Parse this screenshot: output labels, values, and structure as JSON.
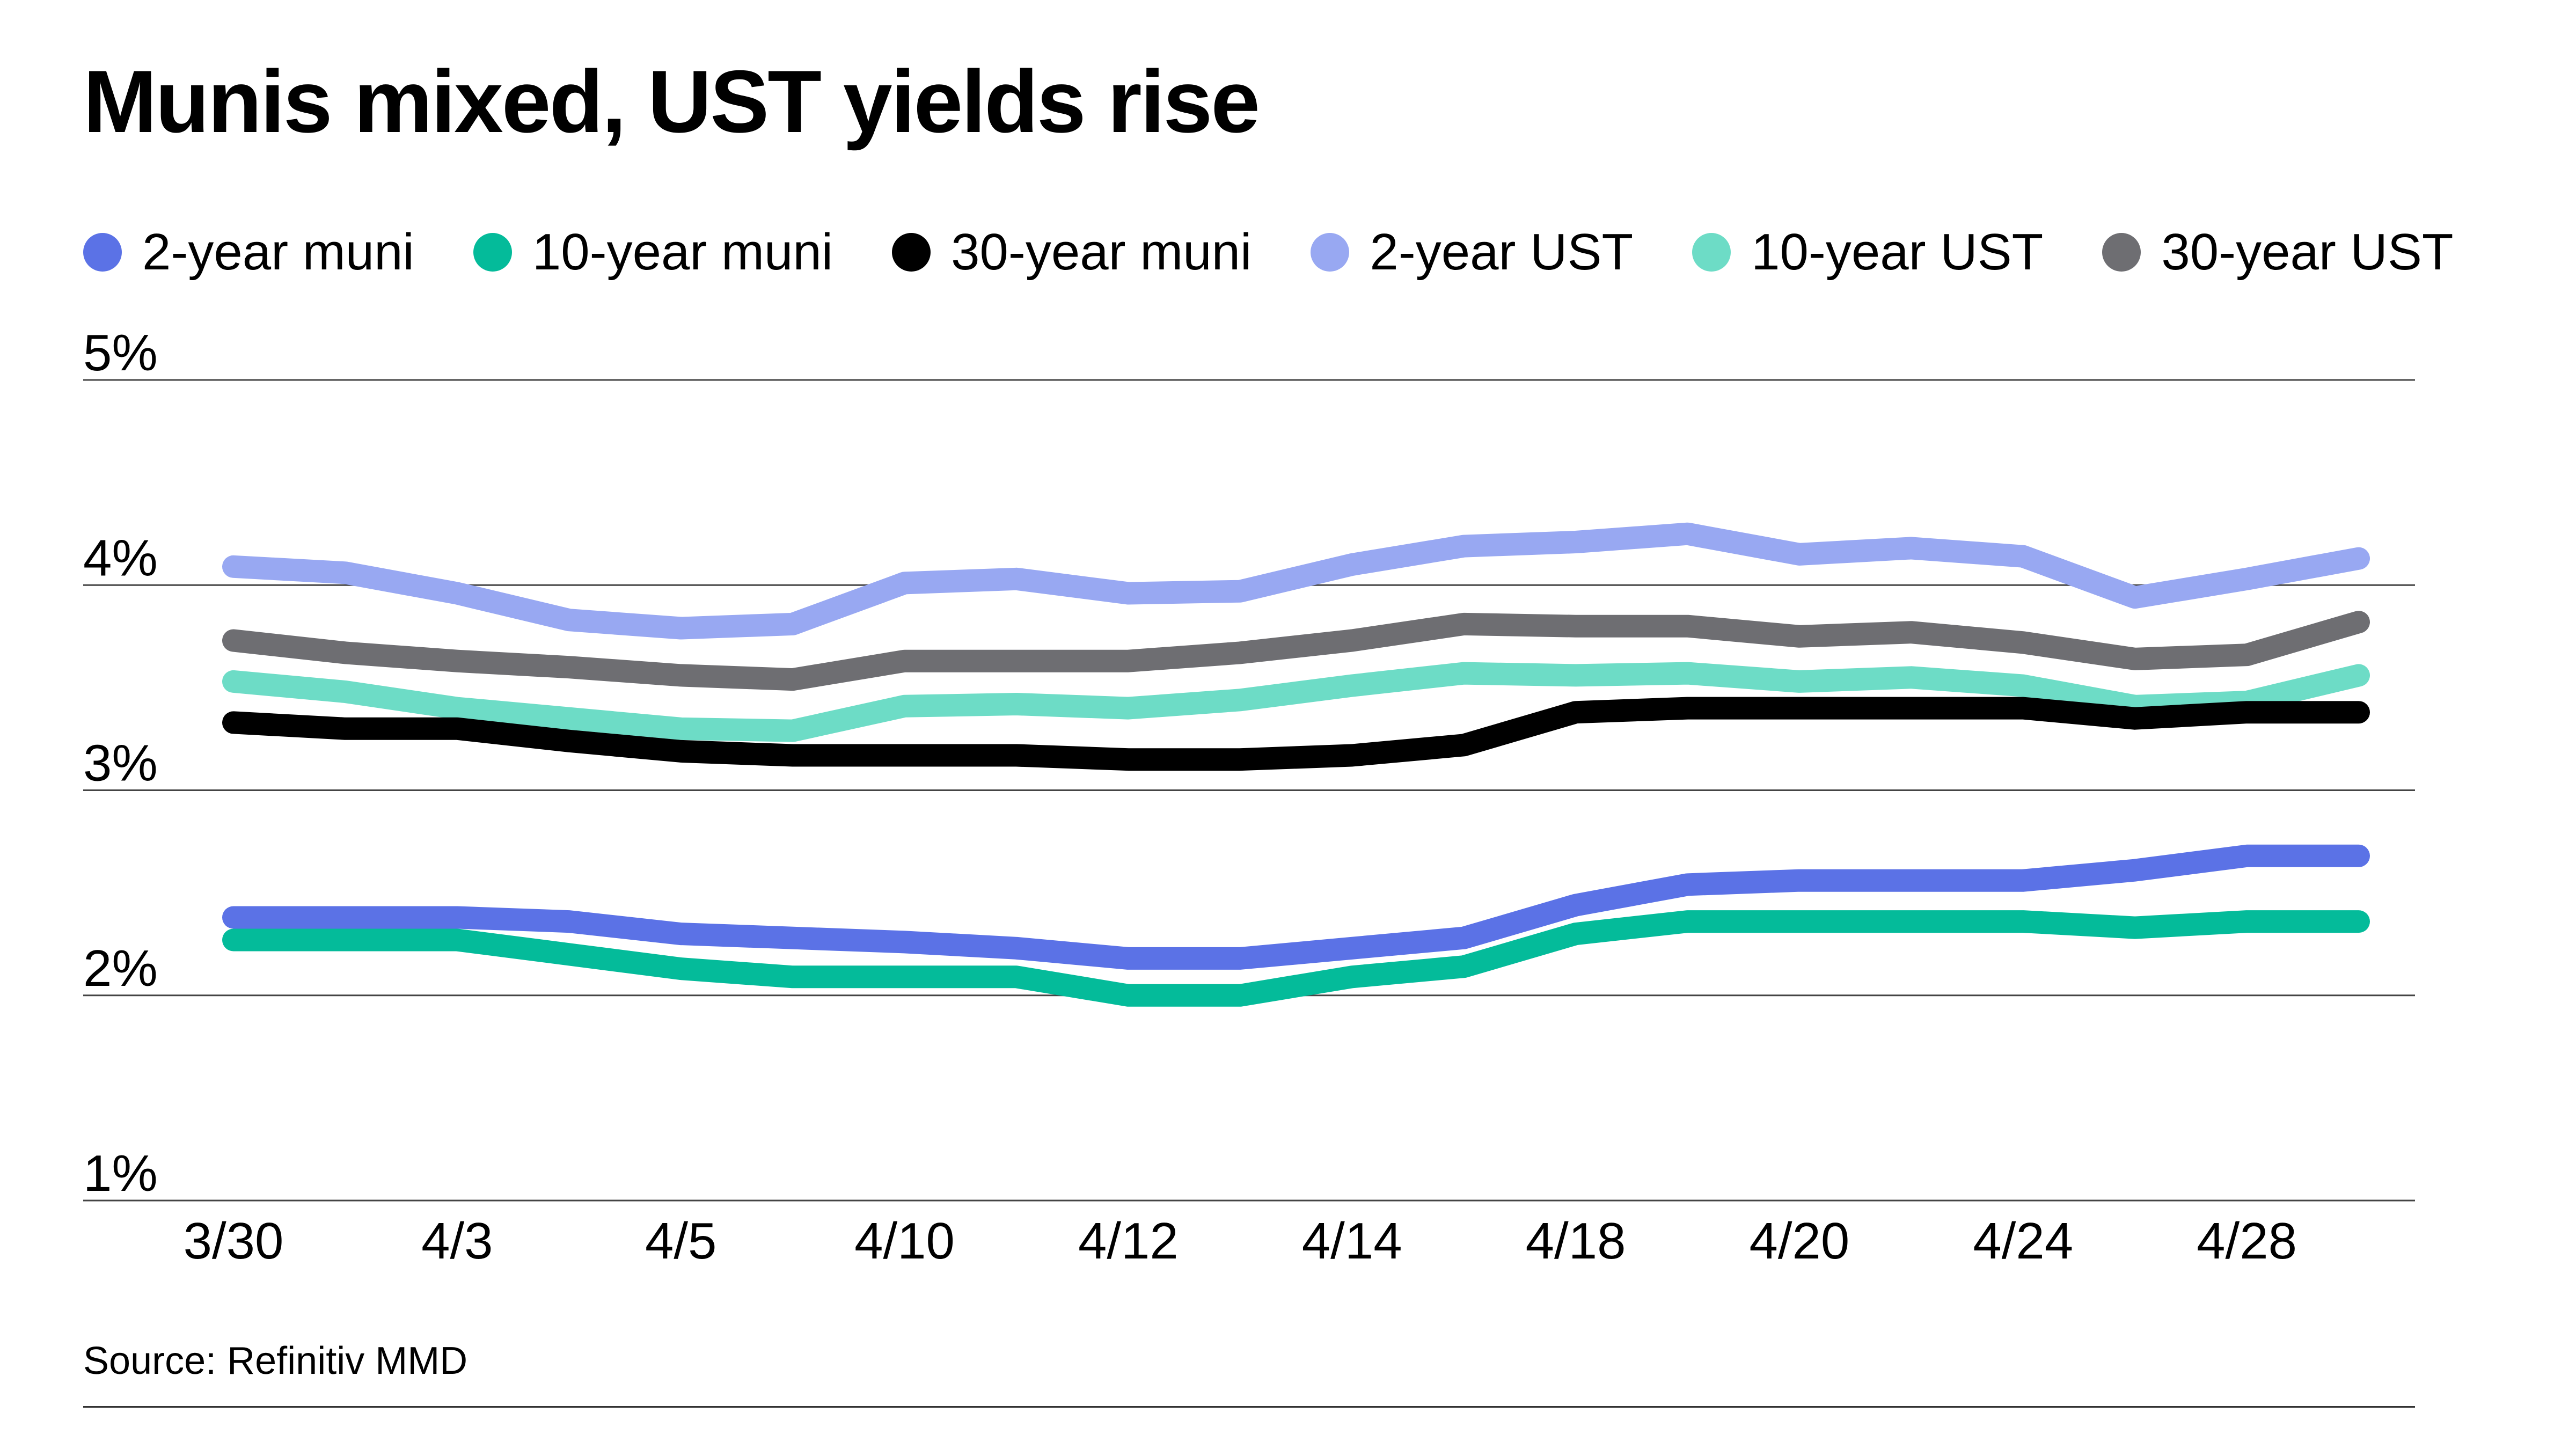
{
  "chart_data": {
    "type": "line",
    "title": "Munis mixed, UST yields rise",
    "xlabel": "",
    "ylabel": "",
    "x_tick_labels": [
      "3/30",
      "4/3",
      "4/5",
      "4/10",
      "4/12",
      "4/14",
      "4/18",
      "4/20",
      "4/24",
      "4/28"
    ],
    "y_ticks": [
      1,
      2,
      3,
      4,
      5
    ],
    "y_tick_labels": [
      "1%",
      "2%",
      "3%",
      "4%",
      "5%"
    ],
    "ylim": [
      1,
      5
    ],
    "grid": true,
    "legend_position": "top",
    "series": [
      {
        "name": "2-year muni",
        "color": "#5b72e6",
        "values": [
          2.38,
          2.38,
          2.38,
          2.36,
          2.3,
          2.28,
          2.26,
          2.23,
          2.18,
          2.18,
          2.23,
          2.28,
          2.44,
          2.54,
          2.56,
          2.56,
          2.56,
          2.61,
          2.68,
          2.68
        ]
      },
      {
        "name": "10-year muni",
        "color": "#04bb9a",
        "values": [
          2.27,
          2.27,
          2.27,
          2.2,
          2.13,
          2.09,
          2.09,
          2.09,
          2.0,
          2.0,
          2.09,
          2.14,
          2.3,
          2.36,
          2.36,
          2.36,
          2.36,
          2.33,
          2.36,
          2.36
        ]
      },
      {
        "name": "30-year muni",
        "color": "#000000",
        "values": [
          3.33,
          3.3,
          3.3,
          3.24,
          3.19,
          3.17,
          3.17,
          3.17,
          3.15,
          3.15,
          3.17,
          3.22,
          3.38,
          3.4,
          3.4,
          3.4,
          3.4,
          3.35,
          3.38,
          3.38
        ]
      },
      {
        "name": "2-year UST",
        "color": "#98a8f2",
        "values": [
          4.09,
          4.06,
          3.96,
          3.83,
          3.79,
          3.81,
          4.01,
          4.03,
          3.96,
          3.97,
          4.1,
          4.19,
          4.21,
          4.25,
          4.15,
          4.18,
          4.14,
          3.94,
          4.03,
          4.13
        ]
      },
      {
        "name": "10-year UST",
        "color": "#6ddcc6",
        "values": [
          3.53,
          3.48,
          3.4,
          3.35,
          3.3,
          3.29,
          3.41,
          3.42,
          3.4,
          3.44,
          3.51,
          3.57,
          3.56,
          3.57,
          3.53,
          3.55,
          3.51,
          3.41,
          3.43,
          3.56
        ]
      },
      {
        "name": "30-year UST",
        "color": "#6e6e72",
        "values": [
          3.73,
          3.67,
          3.63,
          3.6,
          3.56,
          3.54,
          3.63,
          3.63,
          3.63,
          3.67,
          3.73,
          3.81,
          3.8,
          3.8,
          3.75,
          3.77,
          3.72,
          3.64,
          3.66,
          3.82
        ]
      }
    ]
  },
  "source": "Source: Refinitiv MMD"
}
